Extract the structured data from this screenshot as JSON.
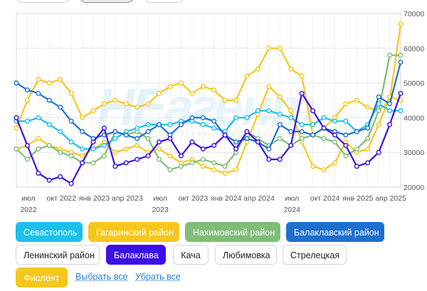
{
  "colors": {
    "Севастополь": "#1cc0ea",
    "Гагаринский район": "#f6c71d",
    "Нахимовский район": "#7fbe77",
    "Балаклавский район": "#1f6fce",
    "Балаклава": "#3b10e6",
    "Фиолент": "#f6c71d"
  },
  "chart_data": {
    "type": "line",
    "x_ticks": [
      {
        "line1": "июл",
        "line2": "2022",
        "i": 0
      },
      {
        "line1": "окт 2022",
        "line2": "",
        "i": 3
      },
      {
        "line1": "янв 2023",
        "line2": "",
        "i": 6
      },
      {
        "line1": "апр 2023",
        "line2": "",
        "i": 9
      },
      {
        "line1": "июл",
        "line2": "2023",
        "i": 12
      },
      {
        "line1": "окт 2023",
        "line2": "",
        "i": 15
      },
      {
        "line1": "янв 2024",
        "line2": "",
        "i": 18
      },
      {
        "line1": "апр 2024",
        "line2": "",
        "i": 21
      },
      {
        "line1": "июл",
        "line2": "2024",
        "i": 24
      },
      {
        "line1": "окт 2024",
        "line2": "",
        "i": 27
      },
      {
        "line1": "янв 2025",
        "line2": "",
        "i": 30
      },
      {
        "line1": "апр 2025",
        "line2": "",
        "i": 33
      }
    ],
    "y_ticks": [
      "70000",
      "60000",
      "50000",
      "40000",
      "30000",
      "20000"
    ],
    "ylim": [
      20000,
      70000
    ],
    "grid": true,
    "series": [
      {
        "name": "Гагаринский район",
        "color": "#f6c71d",
        "values": [
          37000,
          45000,
          51000,
          50000,
          51000,
          47000,
          40000,
          42000,
          44000,
          45000,
          44000,
          43000,
          44000,
          47000,
          49000,
          50000,
          47000,
          49000,
          48000,
          45000,
          45000,
          52000,
          54000,
          60000,
          60000,
          54000,
          52000,
          35000,
          37000,
          40000,
          44000,
          45000,
          43000,
          42000,
          45000,
          67000
        ]
      },
      {
        "name": "Фиолент",
        "color": "#f6c71d",
        "values": [
          31000,
          32000,
          34000,
          32000,
          31000,
          30000,
          29000,
          31000,
          33000,
          30000,
          31000,
          32000,
          30000,
          31000,
          29000,
          27000,
          28000,
          26000,
          25000,
          24000,
          25000,
          33000,
          41000,
          49000,
          46000,
          42000,
          33000,
          26000,
          25000,
          27000,
          33000,
          30000,
          31000,
          38000,
          46000,
          45000
        ]
      },
      {
        "name": "Нахимовский район",
        "color": "#7fbe77",
        "values": [
          31000,
          28000,
          31000,
          32000,
          30000,
          29000,
          27000,
          27000,
          29000,
          36000,
          35000,
          36000,
          34000,
          28000,
          25000,
          26000,
          27000,
          28000,
          27000,
          26000,
          30000,
          36000,
          34000,
          32000,
          34000,
          32000,
          34000,
          35000,
          34000,
          33000,
          29000,
          31000,
          34000,
          42000,
          58000,
          58000
        ]
      },
      {
        "name": "Севастополь",
        "color": "#1cc0ea",
        "values": [
          39000,
          39000,
          40000,
          38000,
          36000,
          33000,
          31000,
          31000,
          32000,
          34000,
          36000,
          37000,
          38000,
          38000,
          38000,
          39000,
          39000,
          38000,
          37000,
          36000,
          40000,
          40000,
          42000,
          42000,
          41000,
          40000,
          38000,
          38000,
          40000,
          39000,
          39000,
          36000,
          38000,
          44000,
          42000,
          42000
        ]
      },
      {
        "name": "Балаклавский район",
        "color": "#1f6fce",
        "values": [
          50000,
          48000,
          47000,
          45000,
          43000,
          39000,
          36000,
          34000,
          35000,
          36000,
          35000,
          34000,
          36000,
          38000,
          35000,
          38000,
          40000,
          40000,
          39000,
          35000,
          33000,
          34000,
          33000,
          31000,
          38000,
          36000,
          36000,
          35000,
          37000,
          36000,
          35000,
          36000,
          37000,
          46000,
          44000,
          56000
        ]
      },
      {
        "name": "Балаклава",
        "color": "#3b10e6",
        "values": [
          40000,
          32000,
          24000,
          22000,
          23000,
          21000,
          27000,
          33000,
          37000,
          26000,
          27000,
          28000,
          29000,
          33000,
          34000,
          29000,
          33000,
          31000,
          32000,
          35000,
          31000,
          36000,
          33000,
          28000,
          28000,
          32000,
          47000,
          42000,
          37000,
          35000,
          32000,
          26000,
          27000,
          30000,
          38000,
          47000
        ]
      }
    ]
  },
  "watermark": {
    "brand_ne": "НЕ",
    "brand_rest": "агент",
    "sub": "агентство недвижимости"
  },
  "chips": [
    {
      "label": "Севастополь",
      "active": true,
      "color": "#1cc0ea"
    },
    {
      "label": "Гагаринский район",
      "active": true,
      "color": "#f6c71d"
    },
    {
      "label": "Нахимовский район",
      "active": true,
      "color": "#7fbe77"
    },
    {
      "label": "Балаклавский район",
      "active": true,
      "color": "#1f6fce"
    },
    {
      "label": "Ленинский район",
      "active": false
    },
    {
      "label": "Балаклава",
      "active": true,
      "color": "#3b10e6"
    },
    {
      "label": "Кача",
      "active": false
    },
    {
      "label": "Любимовка",
      "active": false
    },
    {
      "label": "Стрелецкая",
      "active": false
    },
    {
      "label": "Фиолент",
      "active": true,
      "color": "#f6c71d"
    }
  ],
  "actions": {
    "select_all": "Выбрать все",
    "clear_all": "Убрать все"
  }
}
